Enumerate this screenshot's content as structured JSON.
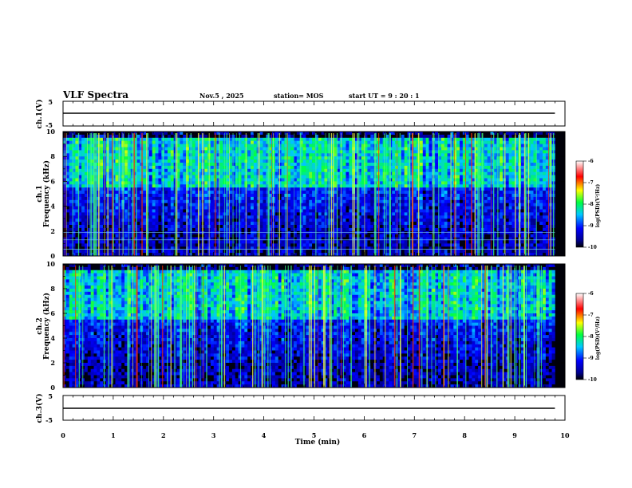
{
  "header": {
    "title": "VLF Spectra",
    "date": "Nov.5 , 2025",
    "station": "station= MOS",
    "start": "start UT = 9 : 20 : 1"
  },
  "chart_data": [
    {
      "id": "ch1_waveform",
      "type": "line",
      "ylabel": "ch.1(V)",
      "ylim": [
        -5,
        5
      ],
      "yticks": [
        5,
        -5
      ],
      "xlim": [
        0,
        10
      ],
      "description_value": 0,
      "x": [
        0,
        9.8
      ],
      "y": [
        0,
        0
      ]
    },
    {
      "id": "ch1_spectrogram",
      "type": "heatmap",
      "ylabel": "Frequency (kHz)",
      "ylabel2": "ch.1",
      "ylim": [
        0,
        10
      ],
      "yticks": [
        0,
        2,
        4,
        6,
        8,
        10
      ],
      "xlim": [
        0,
        10
      ],
      "data_end_min": 9.8,
      "colorbar": {
        "label": "log(PSD)(V²/Hz)",
        "range": [
          -10,
          -6
        ],
        "ticks": [
          "-6",
          "-7",
          "-8",
          "-9",
          "-10"
        ]
      }
    },
    {
      "id": "ch2_spectrogram",
      "type": "heatmap",
      "ylabel": "Frequency (kHz)",
      "ylabel2": "ch.2",
      "ylim": [
        0,
        10
      ],
      "yticks": [
        0,
        2,
        4,
        6,
        8,
        10
      ],
      "xlim": [
        0,
        10
      ],
      "data_end_min": 9.8,
      "colorbar": {
        "label": "log(PSD)(V²/Hz)",
        "range": [
          -10,
          -6
        ],
        "ticks": [
          "-6",
          "-7",
          "-8",
          "-9",
          "-10"
        ]
      }
    },
    {
      "id": "ch3_waveform",
      "type": "line",
      "ylabel": "ch.3(V)",
      "ylim": [
        -5,
        5
      ],
      "yticks": [
        5,
        -5
      ],
      "xlim": [
        0,
        10
      ],
      "x": [
        0,
        9.8
      ],
      "y": [
        0,
        0
      ]
    }
  ],
  "xaxis": {
    "label": "Time (min)",
    "ticks": [
      "0",
      "1",
      "2",
      "3",
      "4",
      "5",
      "6",
      "7",
      "8",
      "9",
      "10"
    ]
  }
}
